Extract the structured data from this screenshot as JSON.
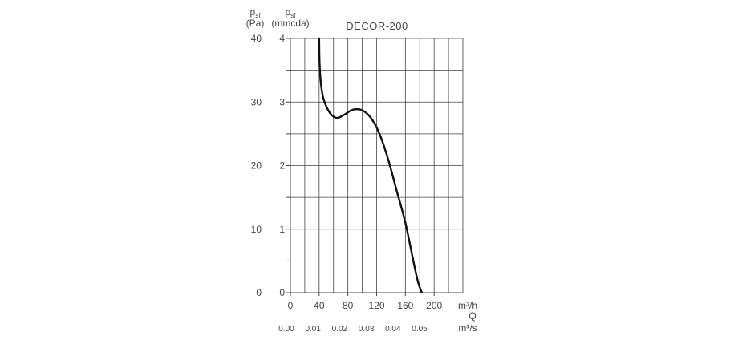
{
  "chart_data": {
    "type": "line",
    "title": "DECOR-200",
    "y_axes": [
      {
        "symbol": "p",
        "subscript": "sf",
        "unit": "(Pa)",
        "range": [
          0,
          40
        ],
        "ticks": [
          "0",
          "10",
          "20",
          "30",
          "40"
        ]
      },
      {
        "symbol": "p",
        "subscript": "sf",
        "unit": "(mmcda)",
        "range": [
          0,
          4
        ],
        "ticks": [
          "0",
          "1",
          "2",
          "3",
          "4"
        ]
      }
    ],
    "x_axes": [
      {
        "unit": "m³/h",
        "range": [
          0,
          240
        ],
        "ticks": [
          "0",
          "40",
          "80",
          "120",
          "160",
          "200"
        ]
      },
      {
        "symbol": "Q"
      },
      {
        "unit": "m³/s",
        "ticks": [
          "0.00",
          "0.01",
          "0.02",
          "0.03",
          "0.04",
          "0.05"
        ]
      }
    ],
    "grid": true,
    "series": [
      {
        "x": [
          40,
          40.5,
          42,
          45,
          50,
          57,
          65,
          75,
          87,
          100,
          112,
          124,
          136,
          148,
          160,
          172,
          178,
          183
        ],
        "y": [
          40,
          36.5,
          33.5,
          31,
          29.3,
          28,
          27.5,
          28,
          28.8,
          28.7,
          27.5,
          25,
          21,
          16,
          11,
          4.5,
          1.5,
          0
        ]
      }
    ]
  }
}
